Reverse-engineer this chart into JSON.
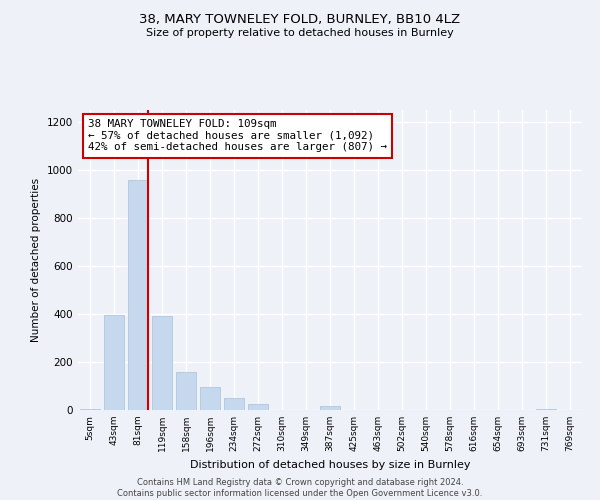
{
  "title": "38, MARY TOWNELEY FOLD, BURNLEY, BB10 4LZ",
  "subtitle": "Size of property relative to detached houses in Burnley",
  "xlabel": "Distribution of detached houses by size in Burnley",
  "ylabel": "Number of detached properties",
  "categories": [
    "5sqm",
    "43sqm",
    "81sqm",
    "119sqm",
    "158sqm",
    "196sqm",
    "234sqm",
    "272sqm",
    "310sqm",
    "349sqm",
    "387sqm",
    "425sqm",
    "463sqm",
    "502sqm",
    "540sqm",
    "578sqm",
    "616sqm",
    "654sqm",
    "693sqm",
    "731sqm",
    "769sqm"
  ],
  "values": [
    4,
    395,
    960,
    390,
    158,
    95,
    50,
    25,
    0,
    0,
    18,
    0,
    0,
    0,
    0,
    0,
    0,
    0,
    0,
    4,
    0
  ],
  "bar_color": "#c5d8ed",
  "bar_edge_color": "#a8c0dc",
  "annotation_line1": "38 MARY TOWNELEY FOLD: 109sqm",
  "annotation_line2": "← 57% of detached houses are smaller (1,092)",
  "annotation_line3": "42% of semi-detached houses are larger (807) →",
  "annotation_box_facecolor": "#ffffff",
  "annotation_box_edgecolor": "#cc0000",
  "red_line_color": "#cc0000",
  "ylim": [
    0,
    1250
  ],
  "yticks": [
    0,
    200,
    400,
    600,
    800,
    1000,
    1200
  ],
  "background_color": "#eef2f8",
  "grid_color": "#ffffff",
  "footer": "Contains HM Land Registry data © Crown copyright and database right 2024.\nContains public sector information licensed under the Open Government Licence v3.0."
}
